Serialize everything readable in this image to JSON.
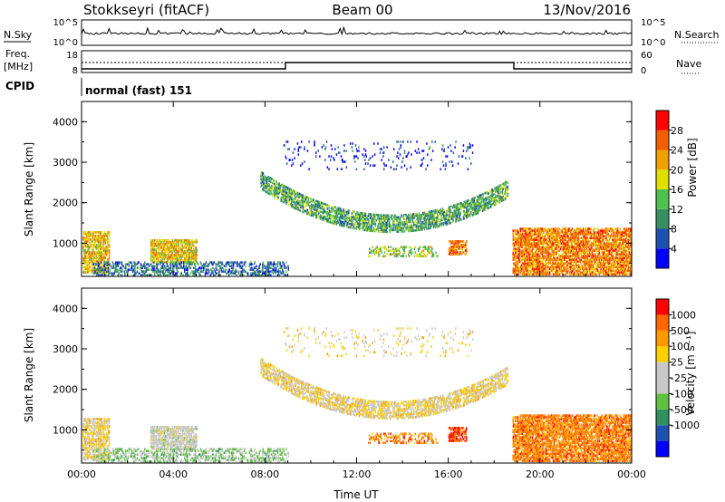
{
  "header": {
    "station": "Stokkseyri (fitACF)",
    "beam": "Beam 00",
    "date": "13/Nov/2016"
  },
  "ops": {
    "nsky_label": "N.Sky",
    "nsky_ticks": [
      "10^5",
      "10^0"
    ],
    "nsearch_label": "N.Search",
    "nsearch_ticks": [
      "10^5",
      "10^0"
    ],
    "freq_label": "Freq.",
    "freq_unit": "[MHz]",
    "freq_ticks": [
      "18",
      "8"
    ],
    "nave_label": "Nave",
    "nave_ticks": [
      "60",
      "0"
    ],
    "cpid_label": "CPID",
    "cpid_text": "normal (fast) 151"
  },
  "colors": {
    "power": [
      "#0000ff",
      "#2050b0",
      "#3a8f62",
      "#50c050",
      "#e0e000",
      "#f0a000",
      "#f06000",
      "#ff0000"
    ],
    "velocity": [
      "#ff0000",
      "#ff6600",
      "#ff9900",
      "#ffd000",
      "#c8c8c8",
      "#c8c8c8",
      "#60c040",
      "#309060",
      "#2050b0",
      "#0000ff"
    ]
  },
  "chart_data": [
    {
      "type": "heatmap",
      "quantity": "power",
      "ylabel": "Slant Range [km]",
      "ylim": [
        180,
        4500
      ],
      "yticks": [
        "1000",
        "2000",
        "3000",
        "4000"
      ],
      "xlim": [
        0,
        24
      ],
      "xticks": [
        "00:00",
        "04:00",
        "08:00",
        "12:00",
        "16:00",
        "20:00",
        "00:00"
      ],
      "colorbar_label": "Power [dB]",
      "colorbar_ticks": [
        "4",
        "8",
        "12",
        "16",
        "20",
        "24",
        "28"
      ],
      "colorbar_range": [
        0,
        30
      ]
    },
    {
      "type": "heatmap",
      "quantity": "velocity",
      "ylabel": "Slant Range [km]",
      "ylim": [
        180,
        4500
      ],
      "yticks": [
        "1000",
        "2000",
        "3000",
        "4000"
      ],
      "xlim": [
        0,
        24
      ],
      "xticks": [
        "00:00",
        "04:00",
        "08:00",
        "12:00",
        "16:00",
        "20:00",
        "00:00"
      ],
      "xlabel": "Time UT",
      "colorbar_label": "Velocity [m s⁻¹]",
      "colorbar_ticks": [
        "1000",
        "500",
        "100",
        "25",
        "-25",
        "-100",
        "-500",
        "-1000"
      ]
    }
  ]
}
